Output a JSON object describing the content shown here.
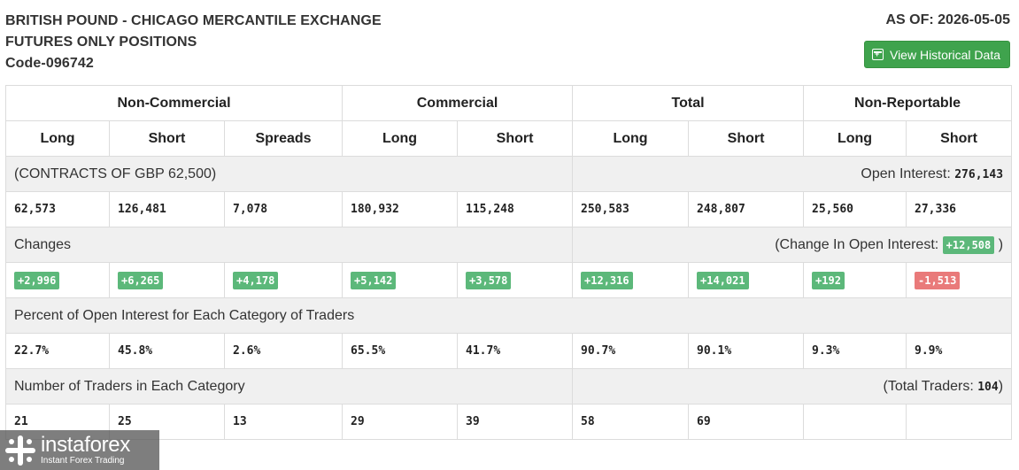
{
  "header": {
    "title_line1": "BRITISH POUND - CHICAGO MERCANTILE EXCHANGE",
    "title_line2": "FUTURES ONLY POSITIONS",
    "code": "Code-096742",
    "as_of": "AS OF: 2026-05-05",
    "historical_button": "View Historical Data"
  },
  "groups": [
    "Non-Commercial",
    "Commercial",
    "Total",
    "Non-Reportable"
  ],
  "columns": [
    "Long",
    "Short",
    "Spreads",
    "Long",
    "Short",
    "Long",
    "Short",
    "Long",
    "Short"
  ],
  "contracts": {
    "label": "(CONTRACTS OF GBP 62,500)",
    "open_interest_label": "Open Interest:",
    "open_interest_value": "276,143",
    "values": [
      "62,573",
      "126,481",
      "7,078",
      "180,932",
      "115,248",
      "250,583",
      "248,807",
      "25,560",
      "27,336"
    ]
  },
  "changes": {
    "label": "Changes",
    "oi_change_label": "(Change In Open Interest:",
    "oi_change_value": "+12,508",
    "oi_change_close": ")",
    "values": [
      "+2,996",
      "+6,265",
      "+4,178",
      "+5,142",
      "+3,578",
      "+12,316",
      "+14,021",
      "+192",
      "-1,513"
    ]
  },
  "percent": {
    "label": "Percent of Open Interest for Each Category of Traders",
    "values": [
      "22.7%",
      "45.8%",
      "2.6%",
      "65.5%",
      "41.7%",
      "90.7%",
      "90.1%",
      "9.3%",
      "9.9%"
    ]
  },
  "traders": {
    "label": "Number of Traders in Each Category",
    "total_label": "(Total Traders:",
    "total_value": "104",
    "total_close": ")",
    "values": [
      "21",
      "25",
      "13",
      "29",
      "39",
      "58",
      "69",
      "",
      ""
    ]
  },
  "logo": {
    "name": "instaforex",
    "tagline": "Instant Forex Trading"
  },
  "colors": {
    "positive": "#5cb87a",
    "negative": "#e97a7a",
    "button": "#3fa34d",
    "section_bg": "#f0f0f0"
  }
}
